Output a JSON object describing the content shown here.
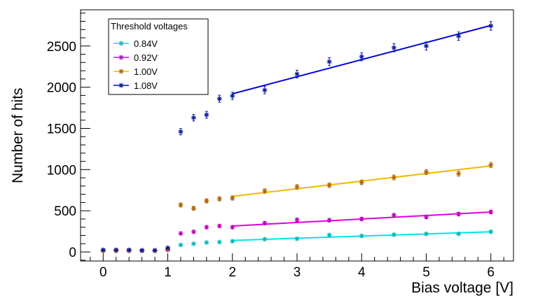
{
  "chart_data": {
    "type": "scatter",
    "title": "",
    "xlabel": "Bias voltage [V]",
    "ylabel": "Number of hits",
    "xlim": [
      -0.35,
      6.35
    ],
    "ylim": [
      -110,
      2940
    ],
    "x_ticks": [
      0,
      1,
      2,
      3,
      4,
      5,
      6
    ],
    "y_ticks": [
      0,
      500,
      1000,
      1500,
      2000,
      2500
    ],
    "legend": {
      "title": "Threshold voltages",
      "position": "top-left"
    },
    "series": [
      {
        "name": "0.84V",
        "color": "#00b8b8",
        "fit_color": "#00e5ee",
        "x": [
          0,
          0.2,
          0.4,
          0.6,
          0.8,
          1.0,
          1.2,
          1.4,
          1.6,
          1.8,
          2.0,
          2.5,
          3.0,
          3.5,
          4.0,
          4.5,
          5.0,
          5.5,
          6.0
        ],
        "y": [
          15,
          15,
          15,
          15,
          15,
          30,
          85,
          100,
          115,
          120,
          130,
          155,
          160,
          205,
          195,
          210,
          220,
          220,
          245
        ],
        "err": [
          6,
          6,
          6,
          6,
          6,
          7,
          10,
          10,
          11,
          11,
          12,
          13,
          13,
          14,
          14,
          15,
          15,
          15,
          16
        ],
        "fit": {
          "x0": 2.0,
          "y0": 140,
          "x1": 6.0,
          "y1": 245
        }
      },
      {
        "name": "0.92V",
        "color": "#c000c0",
        "fit_color": "#e000e0",
        "x": [
          0,
          0.2,
          0.4,
          0.6,
          0.8,
          1.0,
          1.2,
          1.4,
          1.6,
          1.8,
          2.0,
          2.5,
          3.0,
          3.5,
          4.0,
          4.5,
          5.0,
          5.5,
          6.0
        ],
        "y": [
          15,
          15,
          15,
          15,
          15,
          25,
          225,
          245,
          300,
          315,
          300,
          350,
          390,
          385,
          400,
          445,
          425,
          460,
          485
        ],
        "err": [
          6,
          6,
          6,
          6,
          6,
          7,
          15,
          16,
          17,
          18,
          17,
          19,
          20,
          20,
          20,
          21,
          21,
          22,
          22
        ],
        "fit": {
          "x0": 2.0,
          "y0": 315,
          "x1": 6.0,
          "y1": 485
        }
      },
      {
        "name": "1.00V",
        "color": "#b06000",
        "fit_color": "#f2b800",
        "x": [
          0,
          0.2,
          0.4,
          0.6,
          0.8,
          1.0,
          1.2,
          1.4,
          1.6,
          1.8,
          2.0,
          2.5,
          3.0,
          3.5,
          4.0,
          4.5,
          5.0,
          5.5,
          6.0
        ],
        "y": [
          15,
          15,
          15,
          15,
          15,
          35,
          570,
          530,
          620,
          645,
          655,
          740,
          790,
          810,
          845,
          905,
          970,
          950,
          1055
        ],
        "err": [
          6,
          6,
          6,
          6,
          6,
          8,
          24,
          23,
          25,
          25,
          26,
          27,
          28,
          28,
          29,
          30,
          31,
          31,
          32
        ],
        "fit": {
          "x0": 2.0,
          "y0": 675,
          "x1": 6.0,
          "y1": 1045
        }
      },
      {
        "name": "1.08V",
        "color": "#0a1aa0",
        "fit_color": "#0000dd",
        "x": [
          0,
          0.2,
          0.4,
          0.6,
          0.8,
          1.0,
          1.2,
          1.4,
          1.6,
          1.8,
          2.0,
          2.5,
          3.0,
          3.5,
          4.0,
          4.5,
          5.0,
          5.5,
          6.0
        ],
        "y": [
          25,
          25,
          25,
          20,
          20,
          50,
          1460,
          1630,
          1665,
          1860,
          1895,
          1965,
          2160,
          2310,
          2370,
          2480,
          2500,
          2620,
          2745
        ],
        "err": [
          7,
          7,
          7,
          7,
          7,
          9,
          38,
          40,
          41,
          43,
          44,
          44,
          47,
          48,
          49,
          50,
          50,
          51,
          52
        ],
        "fit": {
          "x0": 2.0,
          "y0": 1920,
          "x1": 6.0,
          "y1": 2750
        }
      }
    ]
  }
}
